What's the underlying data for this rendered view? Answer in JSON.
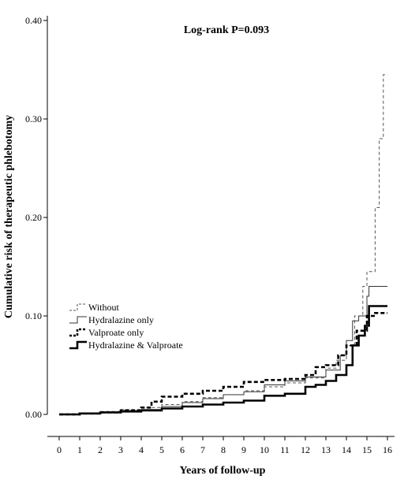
{
  "chart_data": {
    "type": "line",
    "title": "",
    "annotation": "Log-rank P=0.093",
    "xlabel": "Years of follow-up",
    "ylabel": "Cumulative risk of therapeutic phlebotomy",
    "xlim": [
      0,
      16
    ],
    "ylim": [
      0,
      0.4
    ],
    "xticks": [
      "0",
      "1",
      "2",
      "3",
      "4",
      "5",
      "6",
      "7",
      "8",
      "9",
      "10",
      "11",
      "12",
      "13",
      "14",
      "15",
      "16"
    ],
    "yticks": [
      "0.00",
      "0.10",
      "0.20",
      "0.30",
      "0.40"
    ],
    "grid": false,
    "legend_position": "bottom-left",
    "series": [
      {
        "name": "Without",
        "style": "dashed-thin",
        "points": [
          [
            0,
            0
          ],
          [
            1,
            0.001
          ],
          [
            2,
            0.003
          ],
          [
            3,
            0.005
          ],
          [
            4,
            0.007
          ],
          [
            5,
            0.01
          ],
          [
            6,
            0.013
          ],
          [
            7,
            0.017
          ],
          [
            8,
            0.02
          ],
          [
            9,
            0.024
          ],
          [
            10,
            0.028
          ],
          [
            11,
            0.032
          ],
          [
            12,
            0.037
          ],
          [
            13,
            0.047
          ],
          [
            13.5,
            0.055
          ],
          [
            14,
            0.07
          ],
          [
            14.4,
            0.1
          ],
          [
            14.8,
            0.13
          ],
          [
            15,
            0.145
          ],
          [
            15.4,
            0.21
          ],
          [
            15.6,
            0.28
          ],
          [
            15.8,
            0.345
          ],
          [
            16,
            0.345
          ]
        ]
      },
      {
        "name": "Hydralazine only",
        "style": "solid-thin",
        "points": [
          [
            0,
            0
          ],
          [
            1,
            0.001
          ],
          [
            2,
            0.002
          ],
          [
            3,
            0.004
          ],
          [
            4,
            0.005
          ],
          [
            5,
            0.008
          ],
          [
            6,
            0.012
          ],
          [
            7,
            0.016
          ],
          [
            8,
            0.02
          ],
          [
            9,
            0.023
          ],
          [
            10,
            0.03
          ],
          [
            11,
            0.034
          ],
          [
            12,
            0.038
          ],
          [
            13,
            0.045
          ],
          [
            13.7,
            0.06
          ],
          [
            14,
            0.075
          ],
          [
            14.3,
            0.095
          ],
          [
            14.6,
            0.1
          ],
          [
            15,
            0.12
          ],
          [
            15.1,
            0.13
          ],
          [
            16,
            0.13
          ]
        ]
      },
      {
        "name": "Valproate only",
        "style": "dashed-thick",
        "points": [
          [
            0,
            0
          ],
          [
            1,
            0.001
          ],
          [
            2,
            0.002
          ],
          [
            3,
            0.004
          ],
          [
            4,
            0.007
          ],
          [
            4.5,
            0.013
          ],
          [
            5,
            0.018
          ],
          [
            6,
            0.021
          ],
          [
            7,
            0.024
          ],
          [
            8,
            0.028
          ],
          [
            9,
            0.033
          ],
          [
            10,
            0.035
          ],
          [
            11,
            0.036
          ],
          [
            12,
            0.04
          ],
          [
            12.5,
            0.048
          ],
          [
            13,
            0.05
          ],
          [
            13.6,
            0.06
          ],
          [
            14,
            0.07
          ],
          [
            14.5,
            0.085
          ],
          [
            15,
            0.1
          ],
          [
            15.4,
            0.103
          ],
          [
            16,
            0.103
          ]
        ]
      },
      {
        "name": "Hydralazine & Valproate",
        "style": "solid-thick",
        "points": [
          [
            0,
            0
          ],
          [
            1,
            0.001
          ],
          [
            2,
            0.002
          ],
          [
            3,
            0.003
          ],
          [
            4,
            0.004
          ],
          [
            5,
            0.006
          ],
          [
            6,
            0.008
          ],
          [
            7,
            0.01
          ],
          [
            8,
            0.012
          ],
          [
            9,
            0.014
          ],
          [
            10,
            0.019
          ],
          [
            11,
            0.021
          ],
          [
            12,
            0.028
          ],
          [
            12.5,
            0.03
          ],
          [
            13,
            0.034
          ],
          [
            13.5,
            0.04
          ],
          [
            14,
            0.05
          ],
          [
            14.3,
            0.07
          ],
          [
            14.6,
            0.08
          ],
          [
            14.9,
            0.09
          ],
          [
            15.1,
            0.11
          ],
          [
            16,
            0.11
          ]
        ]
      }
    ]
  }
}
